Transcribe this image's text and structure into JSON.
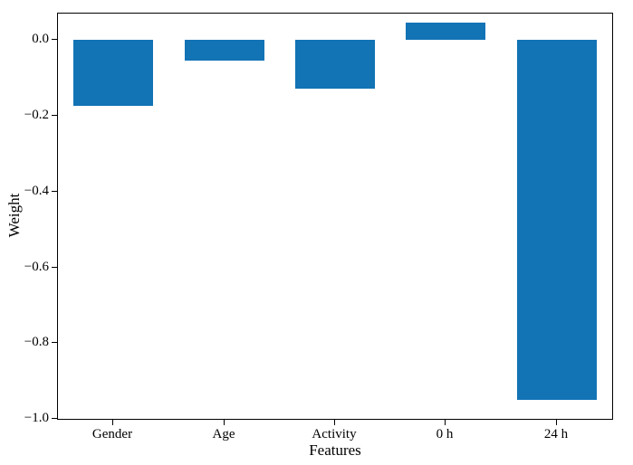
{
  "chart_data": {
    "type": "bar",
    "categories": [
      "Gender",
      "Age",
      "Activity",
      "0 h",
      "24 h"
    ],
    "values": [
      -0.175,
      -0.055,
      -0.13,
      0.045,
      -0.95
    ],
    "title": "",
    "xlabel": "Features",
    "ylabel": "Weight",
    "ylim": [
      -1.0,
      0.07
    ],
    "yticks": [
      0.0,
      -0.2,
      -0.4,
      -0.6,
      -0.8,
      -1.0
    ],
    "bar_color": "#1273b5",
    "grid": false,
    "legend": "none"
  }
}
